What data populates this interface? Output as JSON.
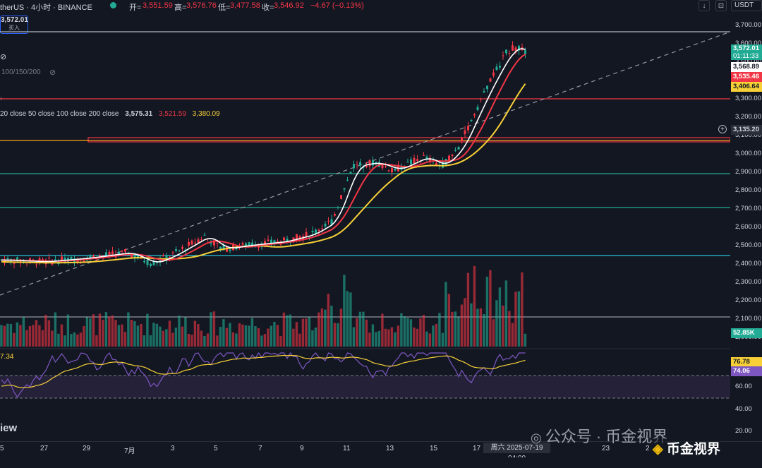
{
  "header": {
    "symbol": "therUS · 4小时 · BINANCE",
    "open_label": "开=",
    "open_value": "3,551.59",
    "high_label": "高=",
    "high_value": "3,576.76",
    "low_label": "低=",
    "low_value": "3,477.58",
    "close_label": "收=",
    "close_value": "3,546.92",
    "change": "−4.67 (−0.13%)",
    "currency": "USDT"
  },
  "trade_box": {
    "price": "3,572.01",
    "action": "买入"
  },
  "indicators": {
    "ma_settings": "100/150/200",
    "ma_legend_label": "20 close 50 close 100 close 200 close",
    "ma_values": [
      "3,575.31",
      "3,521.59",
      "3,380.09"
    ],
    "rsi_label": "7.34"
  },
  "price_axis": {
    "ticks": [
      "3,700.00",
      "3,600.00",
      "3,500.00",
      "3,400.00",
      "3,300.00",
      "3,200.00",
      "3,100.00",
      "3,000.00",
      "2,900.00",
      "2,800.00",
      "2,700.00",
      "2,600.00",
      "2,500.00",
      "2,400.00",
      "2,300.00",
      "2,200.00",
      "2,100.00",
      "2,000.00"
    ],
    "current_price": "3,572.01",
    "countdown": "01:11:33",
    "ma_price_1": "3,568.89",
    "ma_price_2": "3,535.46",
    "ma_price_3": "3,406.64",
    "crosshair_price": "3,135.20",
    "volume_label": "52.85K"
  },
  "rsi_axis": {
    "ticks": [
      "60.00",
      "40.00",
      "20.00"
    ],
    "val_1": "76.78",
    "val_2": "74.06"
  },
  "time_axis": {
    "ticks": [
      "5",
      "27",
      "29",
      "7月",
      "3",
      "5",
      "7",
      "9",
      "11",
      "13",
      "15",
      "17",
      "23",
      "2"
    ],
    "crosshair": "周六 2025-07-19  04:00"
  },
  "branding": {
    "left": "iew",
    "watermark": "公众号 · 币金视界",
    "badge": "币金视界"
  },
  "colors": {
    "up": "#22ab94",
    "down": "#f23645",
    "ma_white": "#ffffff",
    "ma_red": "#f23645",
    "ma_yellow": "#f7d038",
    "rsi": "#7e57c2",
    "rsi_ma": "#f7d038"
  }
}
